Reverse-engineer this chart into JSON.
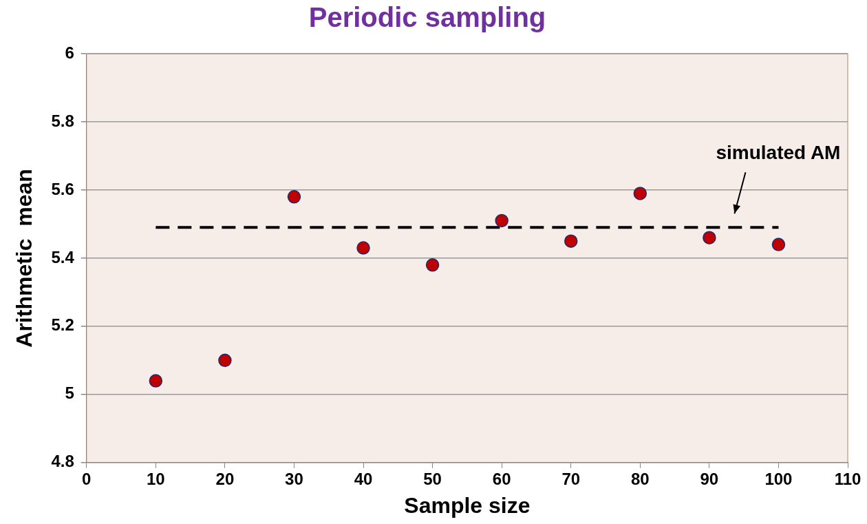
{
  "chart_data": {
    "type": "scatter",
    "title": "Periodic sampling",
    "xlabel": "Sample size",
    "ylabel": "Arithmetic  mean",
    "x": [
      10,
      20,
      30,
      40,
      50,
      60,
      70,
      80,
      90,
      100
    ],
    "series": [
      {
        "color": "#c00000",
        "values": [
          5.04,
          5.1,
          5.58,
          5.43,
          5.38,
          5.51,
          5.45,
          5.59,
          5.46,
          5.44
        ]
      },
      {
        "type": "line",
        "name": "simulated AM",
        "color": "#000000",
        "x": [
          10,
          100
        ],
        "values": [
          5.49,
          5.49
        ],
        "line_style": "dashed",
        "marker": "none"
      }
    ],
    "xlim": [
      0,
      110
    ],
    "xticks": [
      0,
      10,
      20,
      30,
      40,
      50,
      60,
      70,
      80,
      90,
      100,
      110
    ],
    "ylim": [
      4.8,
      6
    ],
    "yticks": [
      4.8,
      5,
      5.2,
      5.4,
      5.6,
      5.8,
      6
    ],
    "grid": "y",
    "legend": false,
    "marker": "circle"
  }
}
